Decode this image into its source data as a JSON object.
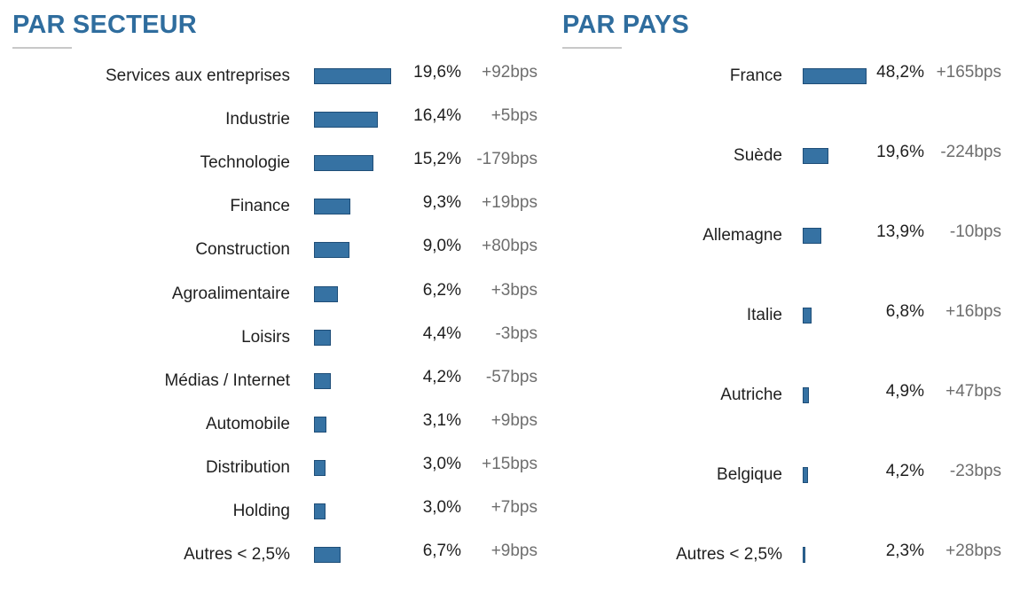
{
  "chart_data": [
    {
      "type": "bar",
      "title": "PAR SECTEUR",
      "categories": [
        "Services aux entreprises",
        "Industrie",
        "Technologie",
        "Finance",
        "Construction",
        "Agroalimentaire",
        "Loisirs",
        "Médias / Internet",
        "Automobile",
        "Distribution",
        "Holding",
        "Autres < 2,5%"
      ],
      "values": [
        19.6,
        16.4,
        15.2,
        9.3,
        9.0,
        6.2,
        4.4,
        4.2,
        3.1,
        3.0,
        3.0,
        6.7
      ],
      "value_labels": [
        "19,6%",
        "16,4%",
        "15,2%",
        "9,3%",
        "9,0%",
        "6,2%",
        "4,4%",
        "4,2%",
        "3,1%",
        "3,0%",
        "3,0%",
        "6,7%"
      ],
      "change_labels": [
        "+92bps",
        "+5bps",
        "-179bps",
        "+19bps",
        "+80bps",
        "+3bps",
        "-3bps",
        "-57bps",
        "+9bps",
        "+15bps",
        "+7bps",
        "+9bps"
      ],
      "orientation": "horizontal",
      "color": "#3672a3",
      "grid": false
    },
    {
      "type": "bar",
      "title": "PAR PAYS",
      "categories": [
        "France",
        "Suède",
        "Allemagne",
        "Italie",
        "Autriche",
        "Belgique",
        "Autres < 2,5%"
      ],
      "values": [
        48.2,
        19.6,
        13.9,
        6.8,
        4.9,
        4.2,
        2.3
      ],
      "value_labels": [
        "48,2%",
        "19,6%",
        "13,9%",
        "6,8%",
        "4,9%",
        "4,2%",
        "2,3%"
      ],
      "change_labels": [
        "+165bps",
        "-224bps",
        "-10bps",
        "+16bps",
        "+47bps",
        "-23bps",
        "+28bps"
      ],
      "orientation": "horizontal",
      "color": "#3672a3",
      "grid": false
    }
  ]
}
